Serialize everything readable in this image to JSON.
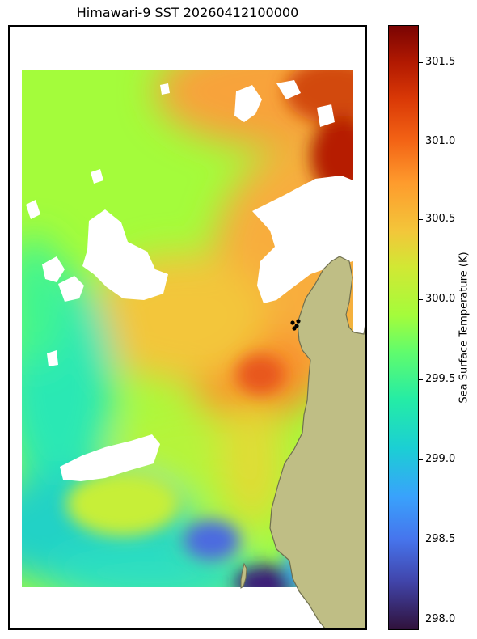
{
  "title": "Himawari-9 SST 20260412100000",
  "colorbar": {
    "label": "Sea Surface Temperature (K)",
    "min": 297.95,
    "max": 301.73,
    "ticks": [
      "298.0",
      "298.5",
      "299.0",
      "299.5",
      "300.0",
      "300.5",
      "301.0",
      "301.5"
    ],
    "colormap": "turbo"
  },
  "colors": {
    "land": "#bfbe85",
    "land_edge": "#6f6f4f",
    "cloud_mask": "#ffffff",
    "marker": "#000000"
  }
}
